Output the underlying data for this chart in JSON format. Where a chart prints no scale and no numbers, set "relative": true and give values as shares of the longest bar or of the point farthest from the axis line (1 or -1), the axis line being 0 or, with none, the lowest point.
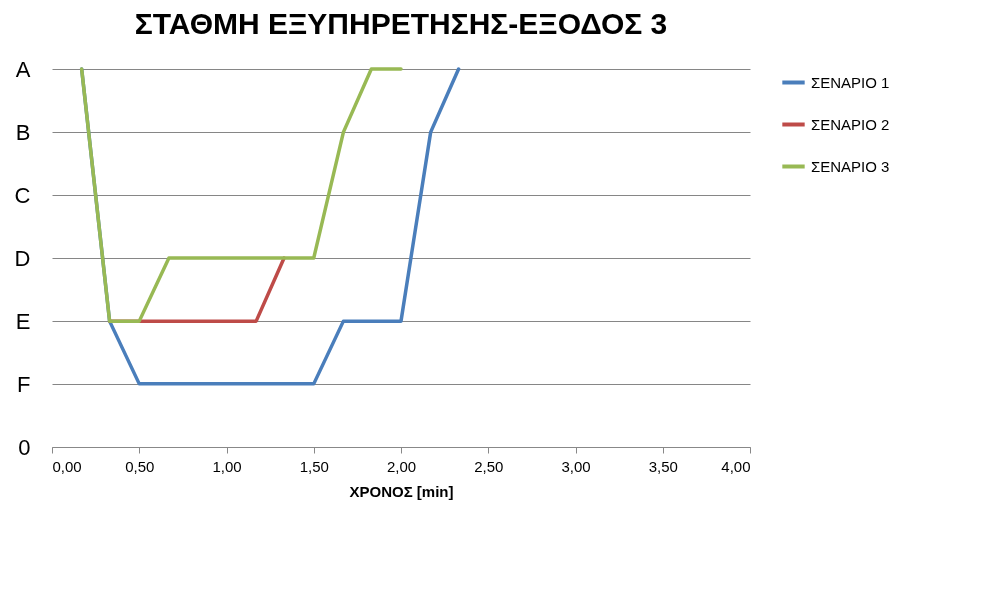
{
  "chart_data": {
    "type": "line",
    "title": "ΣΤΑΘΜΗ ΕΞΥΠΗΡΕΤΗΣΗΣ-ΕΞΟΔΟΣ 3",
    "xlabel": "ΧΡΟΝΟΣ [min]",
    "series": [
      {
        "name": "ΣΕΝΑΡΙΟ 1",
        "color": "#4a7ebb",
        "x": [
          0.17,
          0.33,
          0.5,
          1.5,
          1.67,
          2.0,
          2.17,
          2.33
        ],
        "values": [
          1,
          0.333,
          0.167,
          0.167,
          0.333,
          0.333,
          0.833,
          1
        ]
      },
      {
        "name": "ΣΕΝΑΡΙΟ 2",
        "color": "#be4b48",
        "x": [
          0.33,
          1.17,
          1.33
        ],
        "values": [
          0.333,
          0.333,
          0.5
        ]
      },
      {
        "name": "ΣΕΝΑΡΙΟ 3",
        "color": "#98b954",
        "x": [
          0.17,
          0.33,
          0.5,
          0.67,
          1.5,
          1.67,
          1.83,
          2.0
        ],
        "values": [
          1,
          0.333,
          0.333,
          0.5,
          0.5,
          0.833,
          1,
          1
        ]
      }
    ],
    "xlim": [
      0,
      4
    ],
    "relative": true,
    "xticks": [
      {
        "value": 0,
        "label": "0,00"
      },
      {
        "value": 0.5,
        "label": "0,50"
      },
      {
        "value": 1,
        "label": "1,00"
      },
      {
        "value": 1.5,
        "label": "1,50"
      },
      {
        "value": 2,
        "label": "2,00"
      },
      {
        "value": 2.5,
        "label": "2,50"
      },
      {
        "value": 3,
        "label": "3,00"
      },
      {
        "value": 3.5,
        "label": "3,50"
      },
      {
        "value": 4,
        "label": "4,00"
      }
    ],
    "y_categories": [
      "A",
      "B",
      "C",
      "D",
      "E",
      "F",
      "0"
    ],
    "grid": "y",
    "legend": "right",
    "marker": "none",
    "line_style": "solid"
  }
}
